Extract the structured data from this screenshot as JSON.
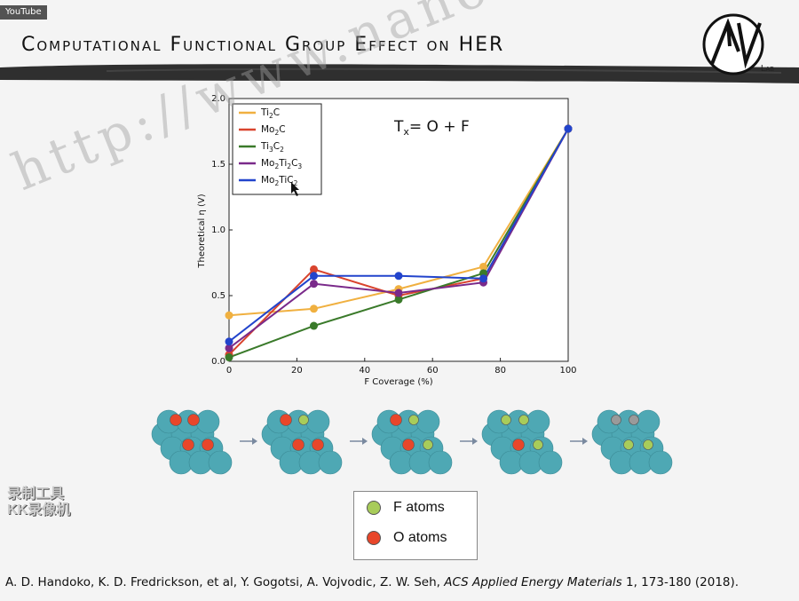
{
  "player": {
    "badge": "YouTube"
  },
  "slide": {
    "title": "Computational Functional Group Effect on HER",
    "logo_lab": "Lab",
    "citation_authors": "A. D. Handoko, K. D. Fredrickson, et al, Y. Gogotsi, A. Vojvodic, Z. W. Seh,",
    "citation_journal": "ACS Applied Energy Materials",
    "citation_rest": "1, 173-180 (2018).",
    "watermark": "http://www.nanomxenes.com",
    "recorder_text_1": "录制工具",
    "recorder_text_2": "KK录像机"
  },
  "atom_legend": {
    "items": [
      {
        "label": "F atoms",
        "color": "#a8cc5a"
      },
      {
        "label": "O atoms",
        "color": "#e8462a"
      }
    ]
  },
  "colors": {
    "surface_atom": "#4ea8b4",
    "arrow": "#7a8aa0",
    "gray_atom": "#9a9a9a"
  },
  "chart_data": {
    "type": "line",
    "x": [
      0,
      25,
      50,
      75,
      100
    ],
    "xlabel": "F Coverage (%)",
    "ylabel": "Theoretical η (V)",
    "xlim": [
      0,
      100
    ],
    "ylim": [
      0.0,
      2.0
    ],
    "xticks": [
      "0",
      "20",
      "40",
      "60",
      "80",
      "100"
    ],
    "yticks": [
      "0.0",
      "0.5",
      "1.0",
      "1.5",
      "2.0"
    ],
    "annotation": "Tx= O + F",
    "legend_position": "top-left",
    "series": [
      {
        "name": "Ti2C",
        "name_main": "Ti",
        "name_sub": "2",
        "name_after": "C",
        "name_sub2": "",
        "color": "#f0b040",
        "values": [
          0.35,
          0.4,
          0.55,
          0.72,
          1.77
        ]
      },
      {
        "name": "Mo2C",
        "name_main": "Mo",
        "name_sub": "2",
        "name_after": "C",
        "name_sub2": "",
        "color": "#d9442e",
        "values": [
          0.05,
          0.7,
          0.5,
          0.63,
          1.77
        ]
      },
      {
        "name": "Ti3C2",
        "name_main": "Ti",
        "name_sub": "3",
        "name_after": "C",
        "name_sub2": "2",
        "color": "#3a7a2a",
        "values": [
          0.03,
          0.27,
          0.47,
          0.67,
          1.77
        ]
      },
      {
        "name": "Mo2Ti2C3",
        "name_main": "Mo",
        "name_sub": "2",
        "name_after": "Ti2C",
        "name_sub2": "3",
        "color": "#7a2a8a",
        "values": [
          0.1,
          0.59,
          0.52,
          0.6,
          1.77
        ]
      },
      {
        "name": "Mo2TiC2",
        "name_main": "Mo",
        "name_sub": "2",
        "name_after": "TiC",
        "name_sub2": "2",
        "color": "#2244cc",
        "values": [
          0.15,
          0.65,
          0.65,
          0.63,
          1.77
        ]
      }
    ]
  }
}
